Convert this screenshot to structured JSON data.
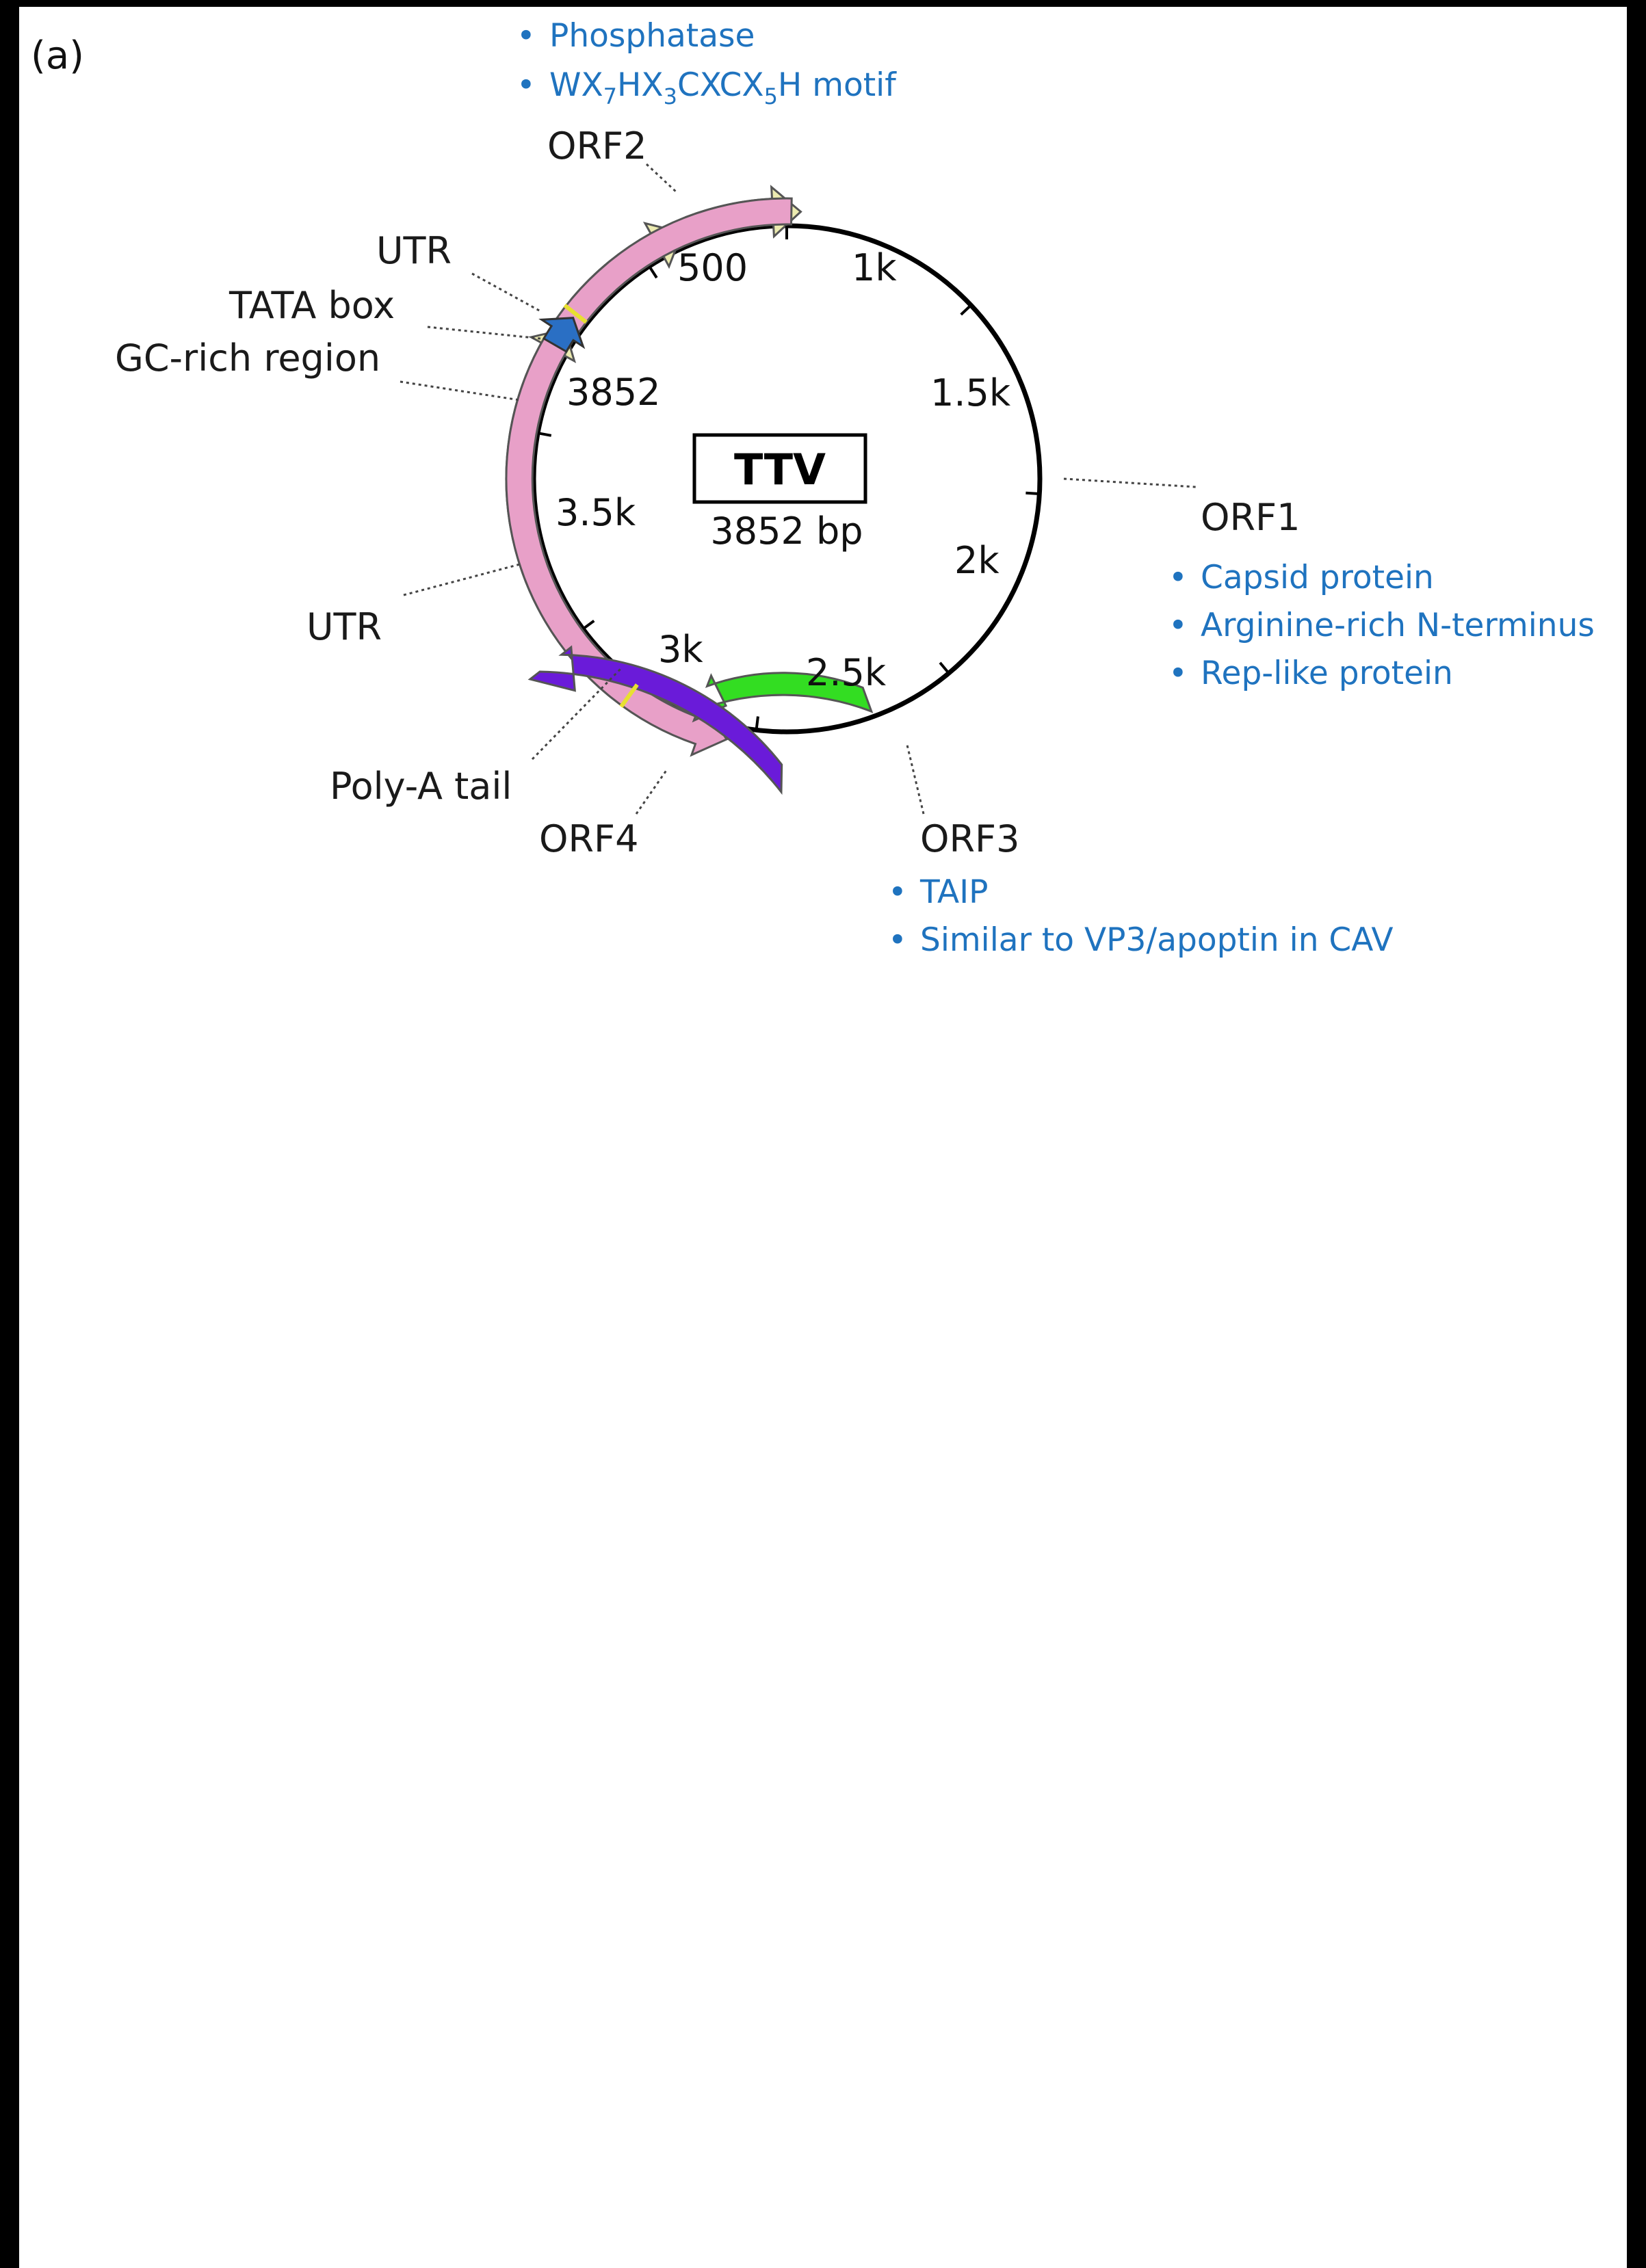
{
  "panel_label": "(a)",
  "genome": {
    "name": "TTV",
    "size_label": "3852 bp"
  },
  "ticks": [
    "500",
    "1k",
    "1.5k",
    "2k",
    "2.5k",
    "3k",
    "3.5k",
    "3852"
  ],
  "labels": {
    "orf1": "ORF1",
    "orf2": "ORF2",
    "orf3": "ORF3",
    "orf4": "ORF4",
    "utr_top": "UTR",
    "utr_bottom": "UTR",
    "tata_box": "TATA box",
    "gc_rich": "GC-rich region",
    "polya": "Poly-A tail"
  },
  "annotations": {
    "orf2": [
      "Phosphatase",
      {
        "parts": [
          "WX",
          "7",
          "HX",
          "3",
          "CXCX",
          "5",
          "H motif"
        ]
      }
    ],
    "orf1": [
      "Capsid protein",
      "Arginine-rich N-terminus",
      "Rep-like protein"
    ],
    "orf3": [
      "TAIP",
      "Similar to VP3/apoptin in CAV"
    ]
  },
  "colors": {
    "orf1": "#e8a0c8",
    "orf2": "#ecebb0",
    "orf3": "#33dd22",
    "orf4": "#6a1bd9",
    "gc_rich": "#2a6fc4",
    "tata": "#e8e030",
    "annotation": "#1f73bf"
  }
}
